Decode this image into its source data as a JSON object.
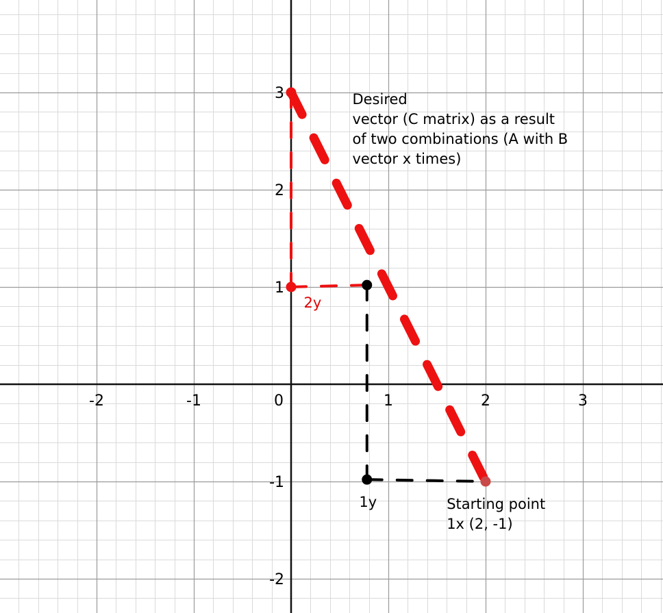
{
  "chart_data": {
    "type": "scatter",
    "title": "",
    "xlabel": "",
    "ylabel": "",
    "xlim": [
      -2.75,
      3.85
    ],
    "ylim": [
      -2.35,
      3.9
    ],
    "grid": true,
    "x_ticks": [
      {
        "value": -2,
        "label": "-2"
      },
      {
        "value": -1,
        "label": "-1"
      },
      {
        "value": 0,
        "label": "0"
      },
      {
        "value": 1,
        "label": "1"
      },
      {
        "value": 2,
        "label": "2"
      },
      {
        "value": 3,
        "label": "3"
      }
    ],
    "y_ticks": [
      {
        "value": -2,
        "label": "-2"
      },
      {
        "value": -1,
        "label": "-1"
      },
      {
        "value": 1,
        "label": "1"
      },
      {
        "value": 2,
        "label": "2"
      },
      {
        "value": 3,
        "label": "3"
      }
    ],
    "points": [
      {
        "x": 0,
        "y": 3,
        "color": "#ee1111"
      },
      {
        "x": 0,
        "y": 1,
        "color": "#ee1111"
      },
      {
        "x": 0.78,
        "y": 1.02,
        "color": "#000000"
      },
      {
        "x": 0.78,
        "y": -0.98,
        "color": "#000000"
      },
      {
        "x": 2,
        "y": -1,
        "color": "#c94848"
      }
    ],
    "dashed_lines": [
      {
        "from": [
          0,
          3
        ],
        "to": [
          0,
          1
        ],
        "color": "#ee1111",
        "style": "thin"
      },
      {
        "from": [
          0,
          1
        ],
        "to": [
          0.78,
          1.02
        ],
        "color": "#ee1111",
        "style": "thin"
      },
      {
        "from": [
          0.78,
          1.02
        ],
        "to": [
          0.78,
          -0.98
        ],
        "color": "#000000",
        "style": "thin"
      },
      {
        "from": [
          0.78,
          -0.98
        ],
        "to": [
          2,
          -1
        ],
        "color": "#000000",
        "style": "thin"
      },
      {
        "from": [
          0,
          3
        ],
        "to": [
          2,
          -1
        ],
        "color": "#ee1111",
        "style": "thick"
      }
    ],
    "annotations": [
      {
        "x": 0.63,
        "y": 2.88,
        "lines": [
          "Desired",
          "vector (C matrix) as a result",
          "of two combinations (A with B",
          "vector x times)"
        ],
        "color": "#000000"
      },
      {
        "x": 0.13,
        "y": 0.79,
        "lines": [
          "2y"
        ],
        "color": "#e00000"
      },
      {
        "x": 0.7,
        "y": -1.26,
        "lines": [
          "1y"
        ],
        "color": "#000000"
      },
      {
        "x": 1.6,
        "y": -1.28,
        "lines": [
          "Starting point",
          "1x (2, -1)"
        ],
        "color": "#000000"
      }
    ]
  }
}
